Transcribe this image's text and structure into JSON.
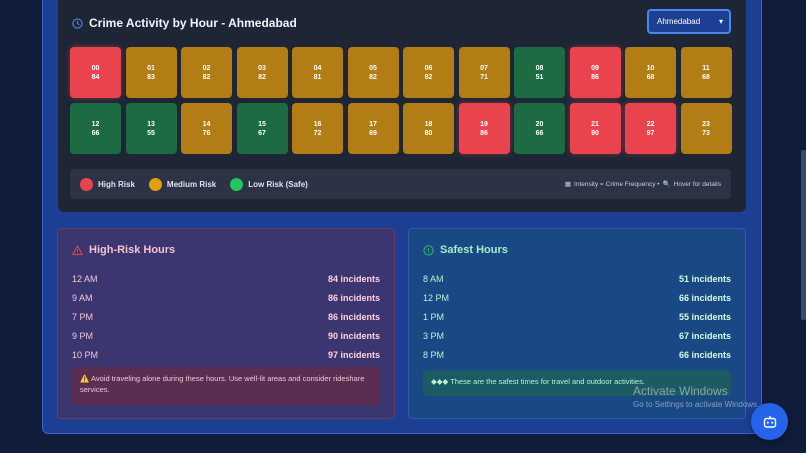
{
  "heatmap": {
    "title": "Crime Activity by Hour - Ahmedabad",
    "city_select": "Ahmedabad",
    "cells": [
      {
        "hour": "00",
        "count": "84",
        "risk": "high"
      },
      {
        "hour": "01",
        "count": "83",
        "risk": "med"
      },
      {
        "hour": "02",
        "count": "82",
        "risk": "med"
      },
      {
        "hour": "03",
        "count": "82",
        "risk": "med"
      },
      {
        "hour": "04",
        "count": "81",
        "risk": "med"
      },
      {
        "hour": "05",
        "count": "82",
        "risk": "med"
      },
      {
        "hour": "06",
        "count": "82",
        "risk": "med"
      },
      {
        "hour": "07",
        "count": "71",
        "risk": "med"
      },
      {
        "hour": "08",
        "count": "51",
        "risk": "low"
      },
      {
        "hour": "09",
        "count": "86",
        "risk": "high"
      },
      {
        "hour": "10",
        "count": "68",
        "risk": "med"
      },
      {
        "hour": "11",
        "count": "68",
        "risk": "med"
      },
      {
        "hour": "12",
        "count": "66",
        "risk": "low"
      },
      {
        "hour": "13",
        "count": "55",
        "risk": "low"
      },
      {
        "hour": "14",
        "count": "76",
        "risk": "med"
      },
      {
        "hour": "15",
        "count": "67",
        "risk": "low"
      },
      {
        "hour": "16",
        "count": "72",
        "risk": "med"
      },
      {
        "hour": "17",
        "count": "69",
        "risk": "med"
      },
      {
        "hour": "18",
        "count": "80",
        "risk": "med"
      },
      {
        "hour": "19",
        "count": "86",
        "risk": "high"
      },
      {
        "hour": "20",
        "count": "66",
        "risk": "low"
      },
      {
        "hour": "21",
        "count": "90",
        "risk": "high"
      },
      {
        "hour": "22",
        "count": "97",
        "risk": "high"
      },
      {
        "hour": "23",
        "count": "73",
        "risk": "med"
      }
    ],
    "legend": {
      "high": "High Risk",
      "medium": "Medium Risk",
      "low": "Low Risk (Safe)",
      "note": "Intensity = Crime Frequency •",
      "hover": "Hover for details"
    },
    "colors": {
      "high": "#e9444e",
      "medium": "#e0a010",
      "low": "#22c55e"
    }
  },
  "high_risk": {
    "title": "High-Risk Hours",
    "rows": [
      {
        "time": "12 AM",
        "count": "84 incidents"
      },
      {
        "time": "9 AM",
        "count": "86 incidents"
      },
      {
        "time": "7 PM",
        "count": "86 incidents"
      },
      {
        "time": "9 PM",
        "count": "90 incidents"
      },
      {
        "time": "10 PM",
        "count": "97 incidents"
      }
    ],
    "notice": "Avoid traveling alone during these hours. Use well-lit areas and consider rideshare services."
  },
  "safest": {
    "title": "Safest Hours",
    "rows": [
      {
        "time": "8 AM",
        "count": "51 incidents"
      },
      {
        "time": "12 PM",
        "count": "66 incidents"
      },
      {
        "time": "1 PM",
        "count": "55 incidents"
      },
      {
        "time": "3 PM",
        "count": "67 incidents"
      },
      {
        "time": "8 PM",
        "count": "66 incidents"
      }
    ],
    "notice": "◆◆◆ These are the safest times for travel and outdoor activities."
  },
  "watermark": {
    "line1": "Activate Windows",
    "line2": "Go to Settings to activate Windows."
  }
}
